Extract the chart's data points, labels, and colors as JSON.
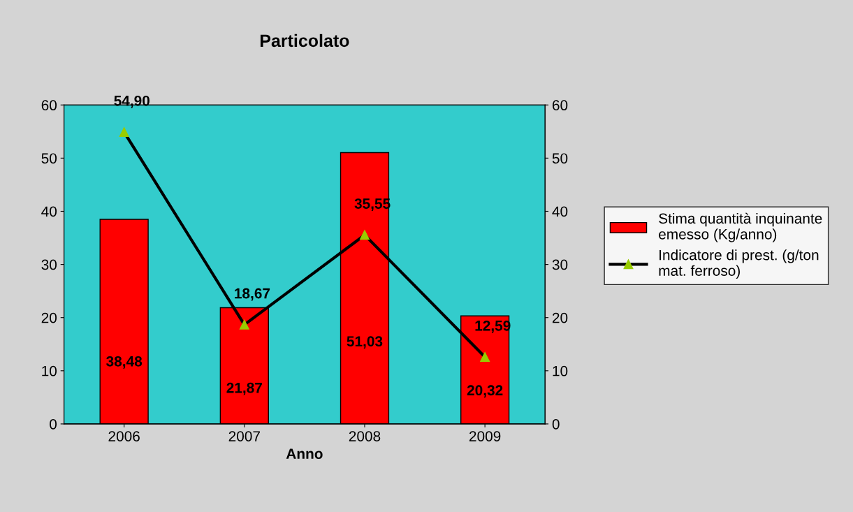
{
  "chart_data": {
    "type": "bar",
    "title": "Particolato",
    "xlabel": "Anno",
    "categories": [
      "2006",
      "2007",
      "2008",
      "2009"
    ],
    "series": [
      {
        "name": "Stima quantità inquinante emesso (Kg/anno)",
        "color": "#ff0000",
        "values": [
          38.48,
          21.87,
          51.03,
          20.32
        ],
        "value_labels": [
          "38,48",
          "21,87",
          "51,03",
          "20,32"
        ]
      },
      {
        "name": "Indicatore di prest. (g/ton mat. ferroso)",
        "type": "line",
        "axis": "y2",
        "color": "#000000",
        "marker": "triangle",
        "values": [
          54.9,
          18.67,
          35.55,
          12.59
        ],
        "value_labels": [
          "54,90",
          "18,67",
          "35,55",
          "12,59"
        ]
      }
    ],
    "ylim": [
      0,
      60
    ],
    "yticks": [
      0,
      10,
      20,
      30,
      40,
      50,
      60
    ],
    "y2lim": [
      0,
      60
    ],
    "y2ticks": [
      0,
      10,
      20,
      30,
      40,
      50,
      60
    ],
    "grid": false,
    "legend": "right"
  }
}
